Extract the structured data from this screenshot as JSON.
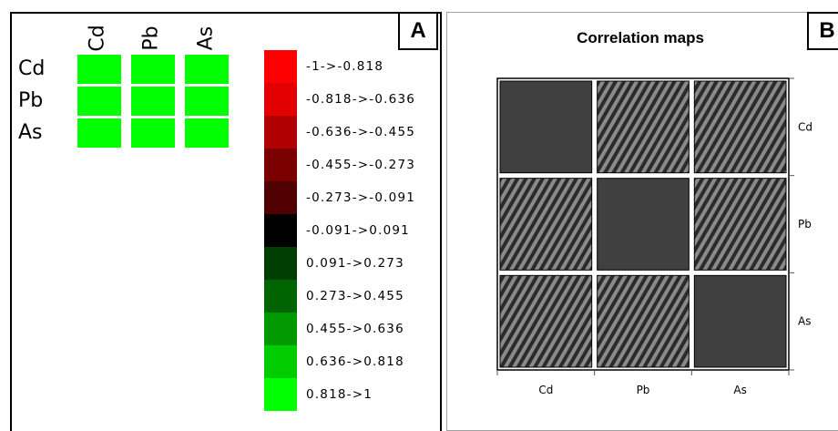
{
  "panel_a": {
    "label": "A",
    "variables": [
      "Cd",
      "Pb",
      "As"
    ],
    "matrix_colors": [
      [
        "#00ff00",
        "#00ff00",
        "#00ff00"
      ],
      [
        "#00ff00",
        "#00ff00",
        "#00ff00"
      ],
      [
        "#00ff00",
        "#00ff00",
        "#00ff00"
      ]
    ],
    "legend": [
      {
        "label": "-1->-0.818",
        "color": "#ff0000"
      },
      {
        "label": "-0.818->-0.636",
        "color": "#e30000"
      },
      {
        "label": "-0.636->-0.455",
        "color": "#b00000"
      },
      {
        "label": "-0.455->-0.273",
        "color": "#7a0000"
      },
      {
        "label": "-0.273->-0.091",
        "color": "#500000"
      },
      {
        "label": "-0.091->0.091",
        "color": "#000000"
      },
      {
        "label": "0.091->0.273",
        "color": "#003d00"
      },
      {
        "label": "0.273->0.455",
        "color": "#006400"
      },
      {
        "label": "0.455->0.636",
        "color": "#009a00"
      },
      {
        "label": "0.636->0.818",
        "color": "#00cc00"
      },
      {
        "label": "0.818->1",
        "color": "#00ff00"
      }
    ]
  },
  "panel_b": {
    "label": "B",
    "title": "Correlation maps"
  },
  "chart_data": [
    {
      "type": "heatmap",
      "title": "",
      "x_labels": [
        "Cd",
        "Pb",
        "As"
      ],
      "y_labels": [
        "Cd",
        "Pb",
        "As"
      ],
      "color_class": [
        [
          "0.818->1",
          "0.818->1",
          "0.818->1"
        ],
        [
          "0.818->1",
          "0.818->1",
          "0.818->1"
        ],
        [
          "0.818->1",
          "0.818->1",
          "0.818->1"
        ]
      ]
    },
    {
      "type": "heatmap",
      "title": "Correlation maps",
      "x_labels": [
        "Cd",
        "Pb",
        "As"
      ],
      "y_labels": [
        "Cd",
        "Pb",
        "As"
      ],
      "cell_fill": [
        [
          "solid",
          "hatched",
          "hatched"
        ],
        [
          "hatched",
          "solid",
          "hatched"
        ],
        [
          "hatched",
          "hatched",
          "solid"
        ]
      ],
      "colors": {
        "solid": "#404040",
        "hatch_dark": "#2b2b2b",
        "hatch_light": "#8a8a8a"
      }
    }
  ]
}
